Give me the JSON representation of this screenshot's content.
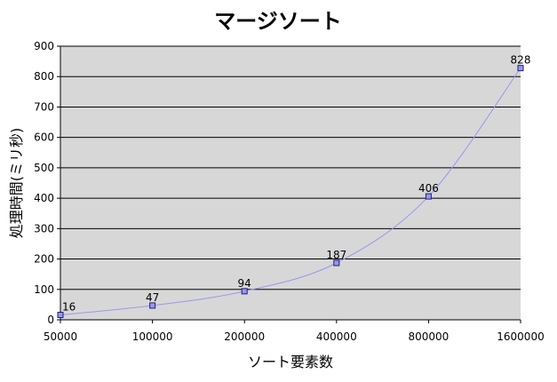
{
  "chart_data": {
    "type": "line",
    "title": "マージソート",
    "xlabel": "ソート要素数",
    "ylabel": "処理時間(ミリ秒)",
    "categories": [
      "50000",
      "100000",
      "200000",
      "400000",
      "800000",
      "1600000"
    ],
    "y_ticks": [
      "0",
      "100",
      "200",
      "300",
      "400",
      "500",
      "600",
      "700",
      "800",
      "900"
    ],
    "ylim": [
      0,
      900
    ],
    "grid": true,
    "legend": "none",
    "series": [
      {
        "values": [
          16,
          47,
          94,
          187,
          406,
          828
        ],
        "labels": [
          "16",
          "47",
          "94",
          "187",
          "406",
          "828"
        ]
      }
    ],
    "colors": {
      "plot_background": "#d7d7d7",
      "gridline": "#000000",
      "line": "#9898f0",
      "marker_fill": "#9898e8",
      "marker_stroke": "#1e1e80",
      "text": "#000000"
    }
  }
}
